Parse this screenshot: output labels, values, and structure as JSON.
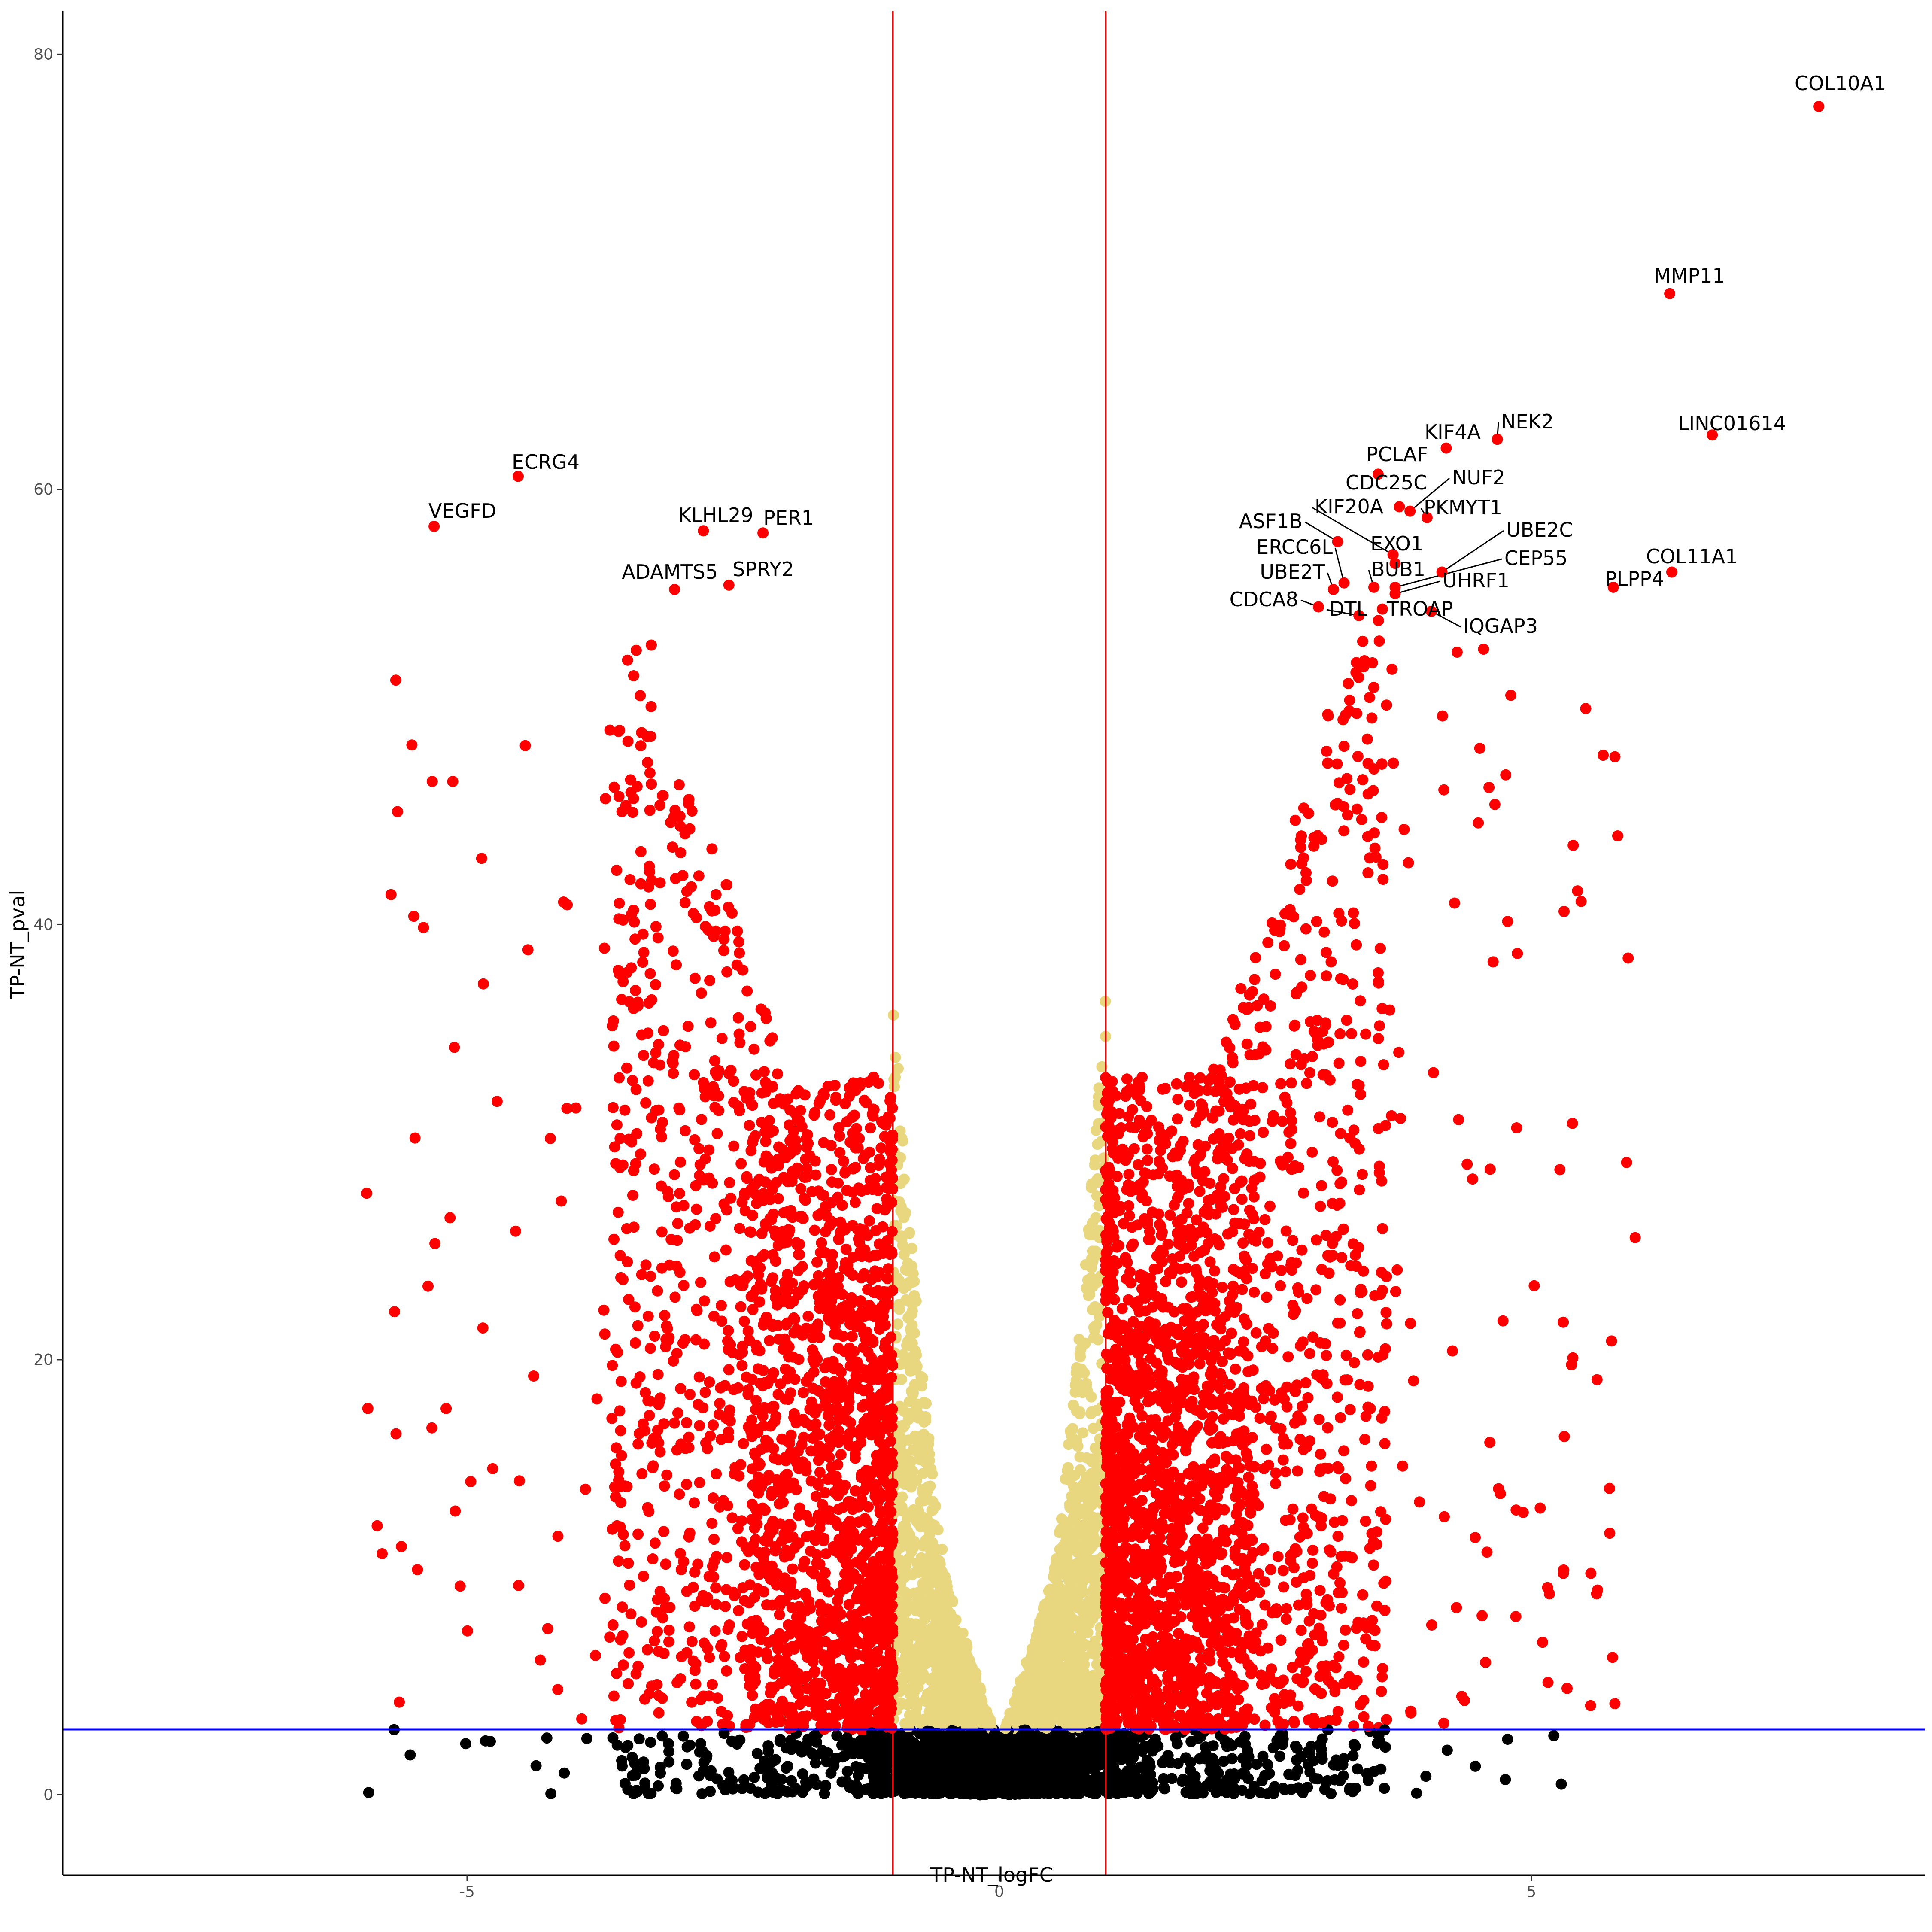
{
  "chart_data": {
    "type": "scatter",
    "title": "",
    "xlabel": "TP-NT_logFC",
    "ylabel": "TP-NT_pval",
    "xlim": [
      -8.8,
      8.7
    ],
    "ylim": [
      -3.7,
      82
    ],
    "x_ticks": [
      -5,
      0,
      5
    ],
    "y_ticks": [
      0,
      20,
      40,
      60,
      80
    ],
    "x_tick_labels": [
      "-5",
      "0",
      "5"
    ],
    "y_tick_labels": [
      "0",
      "20",
      "40",
      "60",
      "80"
    ],
    "grid": false,
    "legend": "none",
    "thresholds": {
      "logFC": [
        -1,
        1
      ],
      "pval": 3,
      "vertical_line_color": "#ff0000",
      "horizontal_line_color": "#0000ff"
    },
    "colors": {
      "significant": "#ff0000",
      "fold_change_only": "#e8d77f",
      "not_significant": "#000000"
    },
    "series": [
      {
        "name": "labeled",
        "points": [
          {
            "gene": "COL10A1",
            "x": 7.7,
            "y": 77.6
          },
          {
            "gene": "MMP11",
            "x": 6.3,
            "y": 69.0
          },
          {
            "gene": "LINC01614",
            "x": 6.7,
            "y": 62.5
          },
          {
            "gene": "NEK2",
            "x": 4.68,
            "y": 62.3
          },
          {
            "gene": "KIF4A",
            "x": 4.2,
            "y": 61.9
          },
          {
            "gene": "PCLAF",
            "x": 3.56,
            "y": 60.7
          },
          {
            "gene": "NUF2",
            "x": 3.86,
            "y": 59.0
          },
          {
            "gene": "CDC25C",
            "x": 3.76,
            "y": 59.2
          },
          {
            "gene": "PKMYT1",
            "x": 4.02,
            "y": 58.7
          },
          {
            "gene": "KIF20A",
            "x": 3.7,
            "y": 57.0
          },
          {
            "gene": "ASF1B",
            "x": 3.18,
            "y": 57.6
          },
          {
            "gene": "EXO1",
            "x": 3.72,
            "y": 56.6
          },
          {
            "gene": "UBE2C",
            "x": 4.16,
            "y": 56.2
          },
          {
            "gene": "ERCC6L",
            "x": 3.24,
            "y": 55.7
          },
          {
            "gene": "CEP55",
            "x": 3.72,
            "y": 55.5
          },
          {
            "gene": "UBE2T",
            "x": 3.14,
            "y": 55.4
          },
          {
            "gene": "BUB1",
            "x": 3.52,
            "y": 55.5
          },
          {
            "gene": "UHRF1",
            "x": 3.72,
            "y": 55.2
          },
          {
            "gene": "COL11A1",
            "x": 6.32,
            "y": 56.2
          },
          {
            "gene": "PLPP4",
            "x": 5.77,
            "y": 55.5
          },
          {
            "gene": "CDCA8",
            "x": 3.0,
            "y": 54.6
          },
          {
            "gene": "DTL",
            "x": 3.38,
            "y": 54.2
          },
          {
            "gene": "TROAP",
            "x": 3.6,
            "y": 54.5
          },
          {
            "gene": "IQGAP3",
            "x": 4.06,
            "y": 54.4
          },
          {
            "gene": "ECRG4",
            "x": -4.52,
            "y": 60.6
          },
          {
            "gene": "VEGFD",
            "x": -5.31,
            "y": 58.3
          },
          {
            "gene": "KLHL29",
            "x": -2.78,
            "y": 58.1
          },
          {
            "gene": "PER1",
            "x": -2.22,
            "y": 58.0
          },
          {
            "gene": "ADAMTS5",
            "x": -3.05,
            "y": 55.4
          },
          {
            "gene": "SPRY2",
            "x": -2.54,
            "y": 55.6
          }
        ]
      }
    ],
    "annotations": [
      "COL10A1",
      "MMP11",
      "LINC01614",
      "NEK2",
      "KIF4A",
      "PCLAF",
      "CDC25C",
      "NUF2",
      "KIF20A",
      "PKMYT1",
      "ASF1B",
      "EXO1",
      "UBE2C",
      "ERCC6L",
      "CEP55",
      "UBE2T",
      "BUB1",
      "UHRF1",
      "COL11A1",
      "PLPP4",
      "CDCA8",
      "DTL",
      "TROAP",
      "IQGAP3",
      "ECRG4",
      "VEGFD",
      "KLHL29",
      "PER1",
      "ADAMTS5",
      "SPRY2"
    ]
  }
}
